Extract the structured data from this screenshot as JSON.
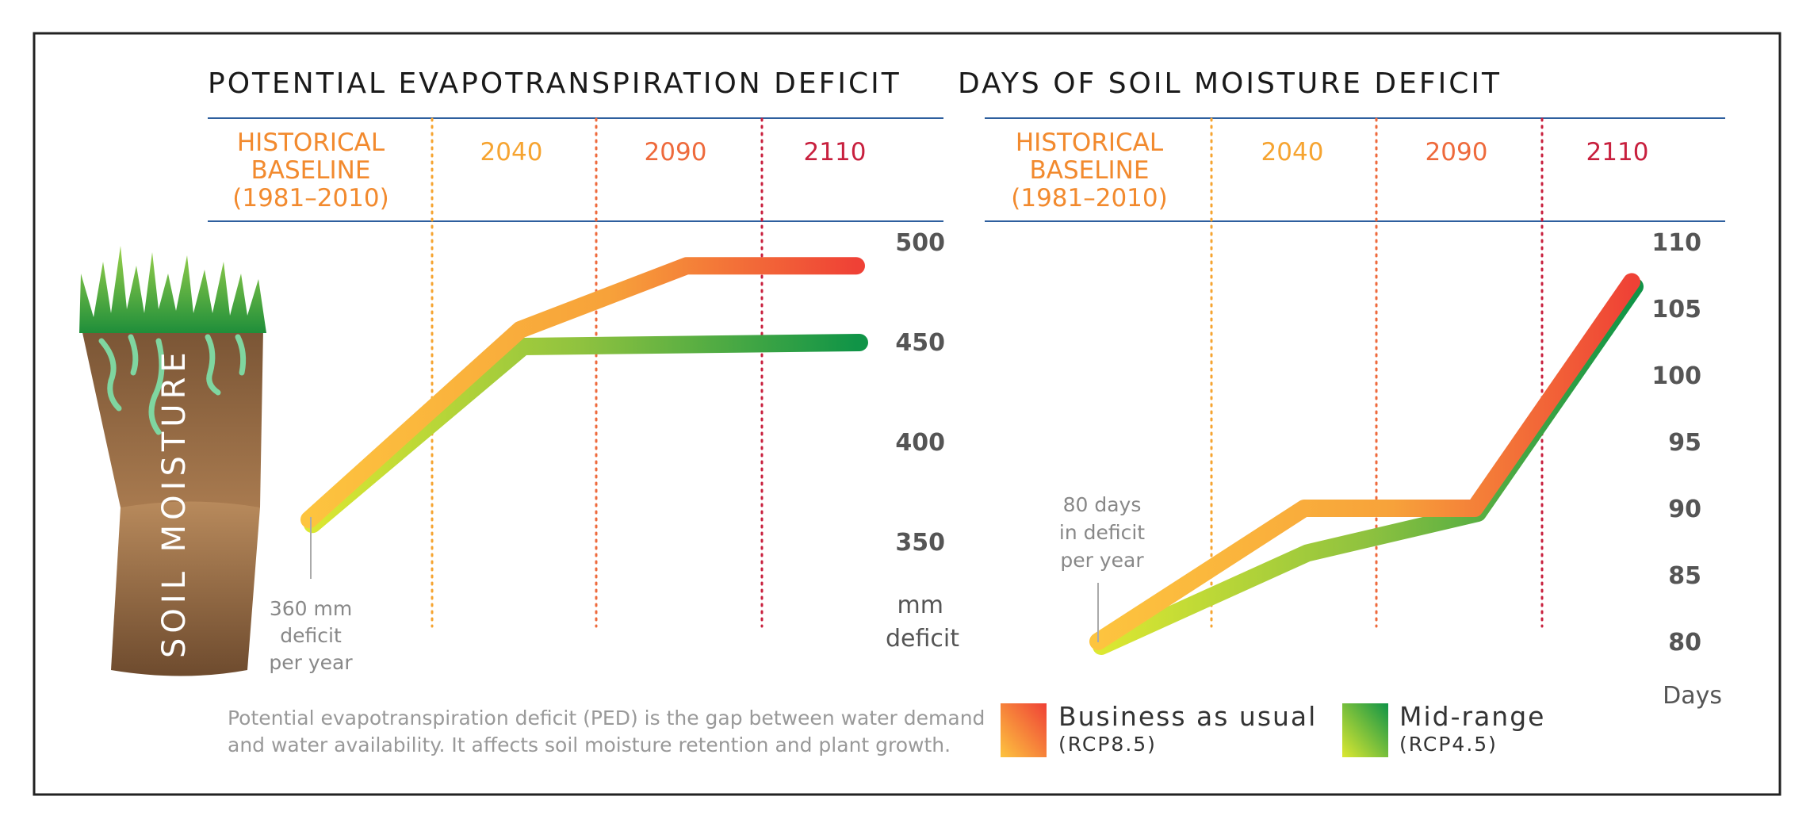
{
  "colors": {
    "frame": "#222222",
    "rule": "#2e5f9e",
    "p_baseline": "#f28a2e",
    "p_2040": "#f6a431",
    "p_2090": "#ee6a3c",
    "p_2110": "#c8203e",
    "bau_start": "#fdc43f",
    "bau_end": "#ef4136",
    "mid_start": "#dde831",
    "mid_end": "#109447"
  },
  "icons": {
    "soil": "soil-column-icon"
  },
  "soil_label": "SOIL MOISTURE",
  "caption": {
    "line1": "Potential evapotranspiration deficit (PED) is the gap between water demand",
    "line2": "and water availability. It affects soil moisture retention and plant growth."
  },
  "legend": {
    "bau": {
      "name": "Business as usual",
      "code": "(RCP8.5)"
    },
    "mid": {
      "name": "Mid-range",
      "code": "(RCP4.5)"
    }
  },
  "chart_data": [
    {
      "type": "line",
      "title": "POTENTIAL EVAPOTRANSPIRATION DEFICIT",
      "periods": [
        {
          "lines": [
            "HISTORICAL",
            "BASELINE",
            "(1981–2010)"
          ]
        },
        {
          "lines": [
            "2040"
          ]
        },
        {
          "lines": [
            "2090"
          ]
        },
        {
          "lines": [
            "2110"
          ]
        }
      ],
      "y_ticks": [
        "500",
        "450",
        "400",
        "350"
      ],
      "y_unit": [
        "mm",
        "deficit"
      ],
      "ylim": [
        320,
        510
      ],
      "annotation": [
        "360 mm",
        "deficit",
        "per year"
      ],
      "series": [
        {
          "name": "Business as usual",
          "code": "(RCP8.5)",
          "x": [
            0,
            1,
            2,
            3
          ],
          "values": [
            361,
            456,
            488,
            488
          ]
        },
        {
          "name": "Mid-range",
          "code": "(RCP4.5)",
          "x": [
            0,
            1,
            2,
            3
          ],
          "values": [
            361,
            450,
            451,
            452
          ]
        }
      ]
    },
    {
      "type": "line",
      "title": "DAYS OF SOIL MOISTURE DEFICIT",
      "periods": [
        {
          "lines": [
            "HISTORICAL",
            "BASELINE",
            "(1981–2010)"
          ]
        },
        {
          "lines": [
            "2040"
          ]
        },
        {
          "lines": [
            "2090"
          ]
        },
        {
          "lines": [
            "2110"
          ]
        }
      ],
      "y_ticks": [
        "110",
        "105",
        "100",
        "95",
        "90",
        "85",
        "80"
      ],
      "y_unit": [
        "Days"
      ],
      "ylim": [
        78,
        112
      ],
      "annotation": [
        "80 days",
        "in deficit",
        "per year"
      ],
      "series": [
        {
          "name": "Business as usual",
          "code": "(RCP8.5)",
          "x": [
            0,
            1,
            2,
            3
          ],
          "values": [
            80,
            90,
            90,
            107
          ]
        },
        {
          "name": "Mid-range",
          "code": "(RCP4.5)",
          "x": [
            0,
            1,
            2,
            3
          ],
          "values": [
            80,
            87,
            90,
            107
          ]
        }
      ]
    }
  ]
}
